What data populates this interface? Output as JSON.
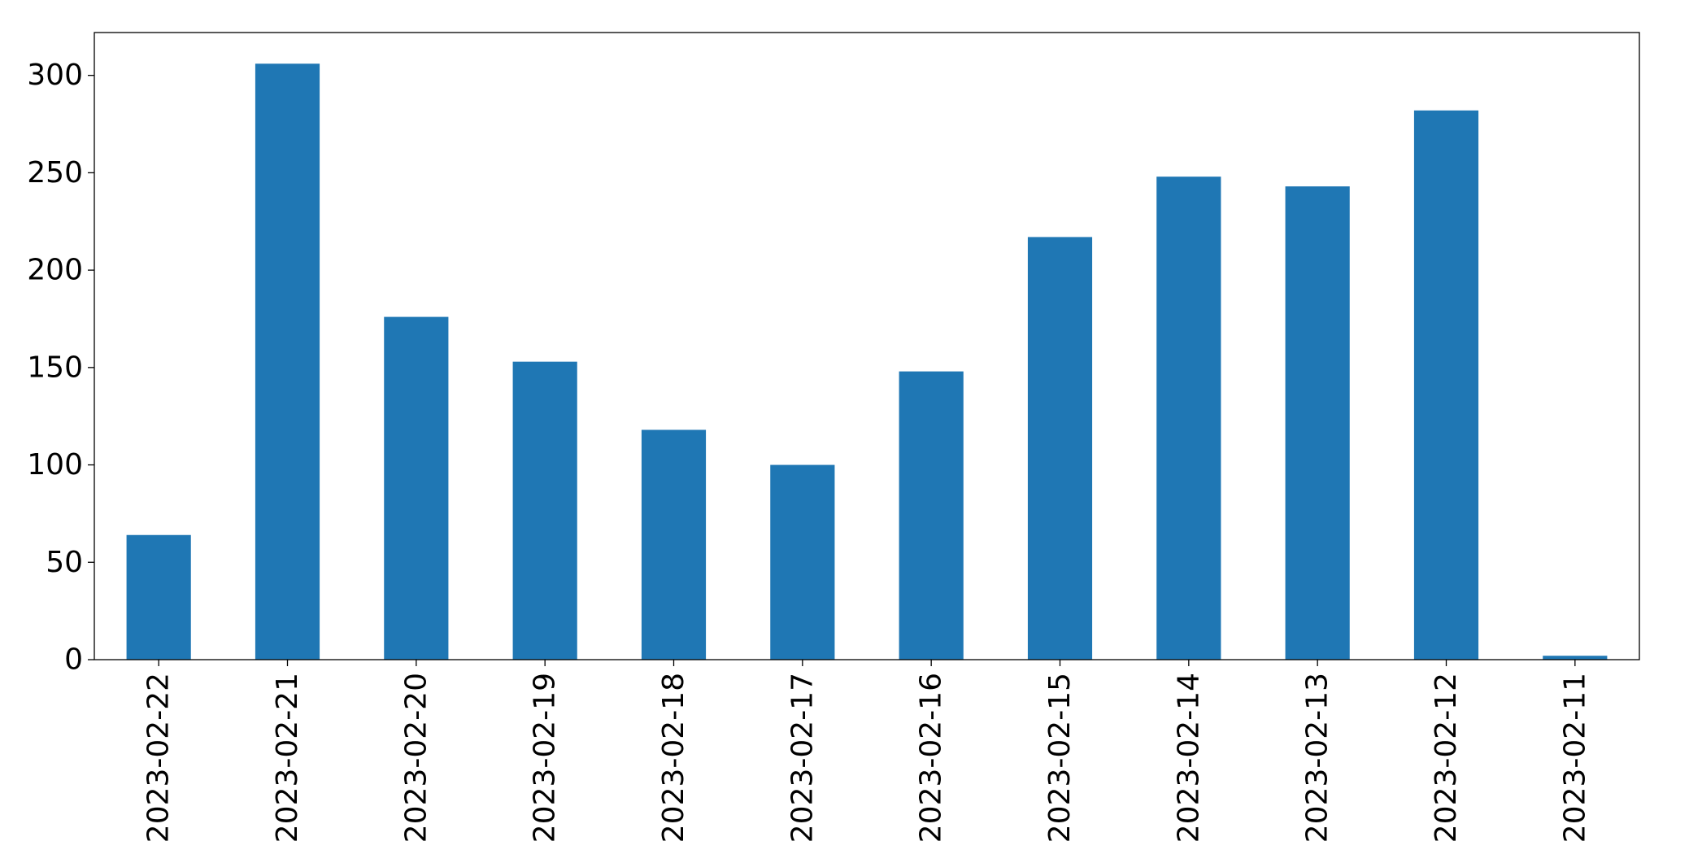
{
  "chart_data": {
    "type": "bar",
    "categories": [
      "2023-02-22",
      "2023-02-21",
      "2023-02-20",
      "2023-02-19",
      "2023-02-18",
      "2023-02-17",
      "2023-02-16",
      "2023-02-15",
      "2023-02-14",
      "2023-02-13",
      "2023-02-12",
      "2023-02-11"
    ],
    "series": [
      {
        "values": [
          64,
          306,
          176,
          153,
          118,
          100,
          148,
          217,
          248,
          243,
          282,
          2
        ]
      }
    ],
    "title": "",
    "xlabel": "",
    "ylabel": "",
    "ylim": [
      0,
      322
    ],
    "yticks": [
      0,
      50,
      100,
      150,
      200,
      250,
      300
    ],
    "grid": false,
    "legend": "none",
    "bar_color": "#1f77b4"
  }
}
